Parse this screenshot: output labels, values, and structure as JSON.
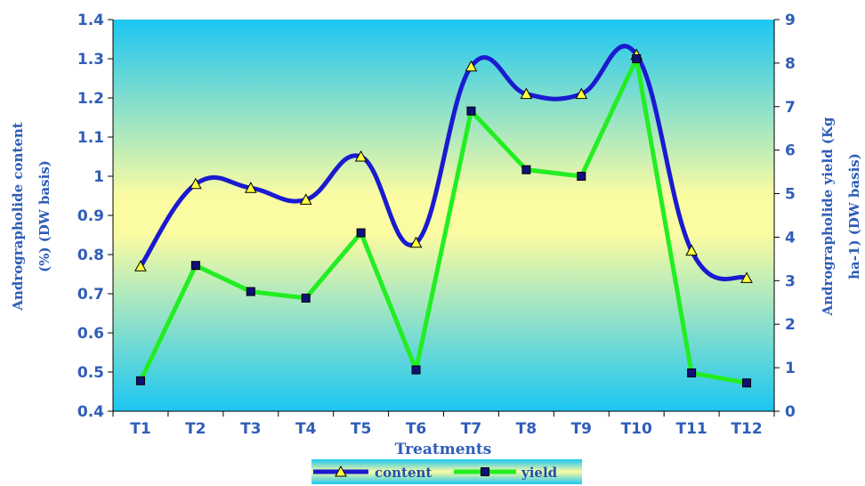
{
  "chart_data": {
    "type": "line",
    "categories": [
      "T1",
      "T2",
      "T3",
      "T4",
      "T5",
      "T6",
      "T7",
      "T8",
      "T9",
      "T10",
      "T11",
      "T12"
    ],
    "xlabel": "Treatments",
    "ylabel_left": [
      "Andrographolide content",
      "(%) (DW basis)"
    ],
    "ylabel_right": [
      "Andrographolide yield (Kg",
      "ha-1) (DW basis)"
    ],
    "ylim_left": [
      0.4,
      1.4
    ],
    "yticks_left": [
      "0.4",
      "0.5",
      "0.6",
      "0.7",
      "0.8",
      "0.9",
      "1",
      "1.1",
      "1.2",
      "1.3",
      "1.4"
    ],
    "ylim_right": [
      0,
      9
    ],
    "yticks_right": [
      "0",
      "1",
      "2",
      "3",
      "4",
      "5",
      "6",
      "7",
      "8",
      "9"
    ],
    "series": [
      {
        "name": "content",
        "axis": "left",
        "color": "#1a1ad0",
        "marker": "triangle",
        "values": [
          0.77,
          0.98,
          0.97,
          0.94,
          1.05,
          0.83,
          1.28,
          1.21,
          1.21,
          1.31,
          0.81,
          0.74
        ]
      },
      {
        "name": "yield",
        "axis": "right",
        "color": "#22ee22",
        "marker": "square",
        "values": [
          0.7,
          3.35,
          2.75,
          2.6,
          4.1,
          0.95,
          6.9,
          5.55,
          5.4,
          8.1,
          0.88,
          0.65
        ]
      }
    ],
    "legend_position": "bottom",
    "grid": false,
    "background": "gradient cyan-yellow-cyan"
  }
}
